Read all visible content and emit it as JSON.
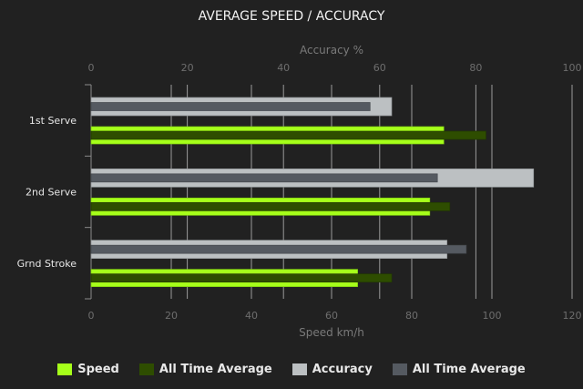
{
  "chart_data": {
    "type": "bar",
    "orientation": "horizontal",
    "title": "AVERAGE SPEED / ACCURACY",
    "categories": [
      "1st Serve",
      "2nd Serve",
      "Grnd Stroke"
    ],
    "top_axis": {
      "label": "Accuracy %",
      "range": [
        0,
        100
      ],
      "ticks": [
        0,
        20,
        40,
        60,
        80,
        100
      ]
    },
    "bottom_axis": {
      "label": "Speed km/h",
      "range": [
        0,
        120
      ],
      "ticks": [
        0,
        20,
        40,
        60,
        80,
        100,
        120
      ]
    },
    "grid": true,
    "legend_position": "bottom",
    "series": [
      {
        "name": "Speed",
        "axis": "speed",
        "color": "#a6ff1a",
        "values": [
          88,
          84.5,
          66.5
        ]
      },
      {
        "name": "All Time Average",
        "axis": "speed",
        "color": "#2e4d00",
        "values": [
          98.5,
          89.5,
          75
        ]
      },
      {
        "name": "Accuracy",
        "axis": "accuracy",
        "color": "#bcc0c2",
        "values": [
          62.5,
          92,
          74
        ]
      },
      {
        "name": "All Time Average",
        "axis": "accuracy",
        "color": "#555a61",
        "values": [
          58,
          72,
          78
        ]
      }
    ]
  }
}
